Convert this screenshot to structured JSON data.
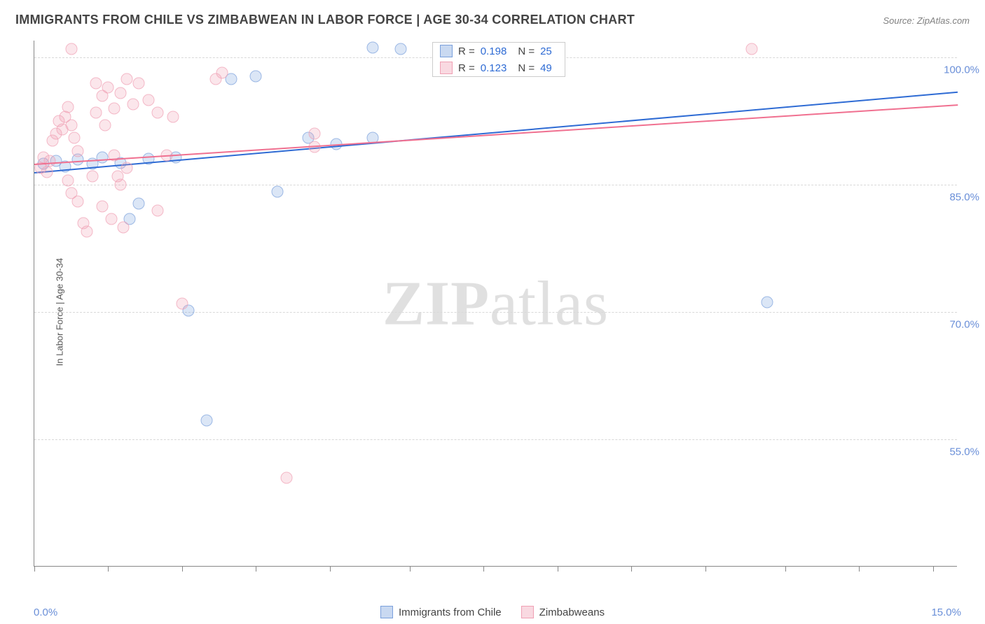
{
  "title": "IMMIGRANTS FROM CHILE VS ZIMBABWEAN IN LABOR FORCE | AGE 30-34 CORRELATION CHART",
  "source": "Source: ZipAtlas.com",
  "watermark_bold": "ZIP",
  "watermark_rest": "atlas",
  "chart": {
    "type": "scatter",
    "background_color": "#ffffff",
    "grid_color": "#d8d8d8",
    "axis_color": "#888888",
    "text_color": "#444444",
    "value_color": "#6a8fd8",
    "y_axis_title": "In Labor Force | Age 30-34",
    "xlim": [
      0,
      15
    ],
    "ylim": [
      40,
      102
    ],
    "x_ticks": [
      0,
      1.2,
      2.4,
      3.6,
      4.8,
      6.1,
      7.3,
      8.5,
      9.7,
      10.9,
      12.2,
      13.4,
      14.6
    ],
    "x_tick_labels": {
      "left": "0.0%",
      "right": "15.0%"
    },
    "y_gridlines": [
      55,
      70,
      85,
      100
    ],
    "y_tick_labels": [
      "55.0%",
      "70.0%",
      "85.0%",
      "100.0%"
    ],
    "marker_size": 17,
    "marker_opacity": 0.75,
    "line_width": 2,
    "series": [
      {
        "key": "a",
        "name": "Immigrants from Chile",
        "color_fill": "rgba(120,160,220,0.35)",
        "color_stroke": "#7aa0dc",
        "trend_color": "#2e6bd4",
        "R": "0.198",
        "N": "25",
        "trend": {
          "x1": 0,
          "y1": 86.5,
          "x2": 15,
          "y2": 96
        },
        "points": [
          [
            0.15,
            87.5
          ],
          [
            0.35,
            87.8
          ],
          [
            0.5,
            87.2
          ],
          [
            0.7,
            88.0
          ],
          [
            0.95,
            87.5
          ],
          [
            1.1,
            88.2
          ],
          [
            1.4,
            87.6
          ],
          [
            1.85,
            88.1
          ],
          [
            1.7,
            82.8
          ],
          [
            1.55,
            81.0
          ],
          [
            2.3,
            88.2
          ],
          [
            2.5,
            70.2
          ],
          [
            2.8,
            57.2
          ],
          [
            3.2,
            97.5
          ],
          [
            3.6,
            97.8
          ],
          [
            3.95,
            84.2
          ],
          [
            4.45,
            90.5
          ],
          [
            4.9,
            89.8
          ],
          [
            5.5,
            101.2
          ],
          [
            5.95,
            101.0
          ],
          [
            5.5,
            90.5
          ],
          [
            6.65,
            100.8
          ],
          [
            11.9,
            71.2
          ],
          [
            6.95,
            100.6
          ],
          [
            7.3,
            100.8
          ]
        ]
      },
      {
        "key": "b",
        "name": "Zimbabweans",
        "color_fill": "rgba(240,160,180,0.35)",
        "color_stroke": "#f0a0b4",
        "trend_color": "#f07090",
        "R": "0.123",
        "N": "49",
        "trend": {
          "x1": 0,
          "y1": 87.5,
          "x2": 15,
          "y2": 94.5
        },
        "points": [
          [
            0.1,
            87.0
          ],
          [
            0.15,
            88.2
          ],
          [
            0.2,
            86.5
          ],
          [
            0.25,
            87.8
          ],
          [
            0.3,
            90.2
          ],
          [
            0.35,
            91.0
          ],
          [
            0.4,
            92.5
          ],
          [
            0.45,
            91.5
          ],
          [
            0.5,
            93.0
          ],
          [
            0.55,
            94.2
          ],
          [
            0.6,
            92.0
          ],
          [
            0.65,
            90.5
          ],
          [
            0.7,
            89.0
          ],
          [
            0.55,
            85.5
          ],
          [
            0.6,
            84.0
          ],
          [
            0.7,
            83.0
          ],
          [
            0.8,
            80.5
          ],
          [
            0.85,
            79.5
          ],
          [
            0.95,
            86.0
          ],
          [
            0.6,
            101.0
          ],
          [
            1.0,
            97.0
          ],
          [
            1.1,
            95.5
          ],
          [
            1.2,
            96.5
          ],
          [
            1.3,
            94.0
          ],
          [
            1.4,
            95.8
          ],
          [
            1.5,
            97.5
          ],
          [
            1.6,
            94.5
          ],
          [
            1.0,
            93.5
          ],
          [
            1.15,
            92.0
          ],
          [
            1.3,
            88.5
          ],
          [
            1.35,
            86.0
          ],
          [
            1.4,
            85.0
          ],
          [
            1.5,
            87.0
          ],
          [
            1.1,
            82.5
          ],
          [
            1.25,
            81.0
          ],
          [
            1.45,
            80.0
          ],
          [
            1.85,
            95.0
          ],
          [
            2.0,
            82.0
          ],
          [
            2.0,
            93.5
          ],
          [
            2.25,
            93.0
          ],
          [
            2.4,
            71.0
          ],
          [
            2.95,
            97.5
          ],
          [
            3.05,
            98.2
          ],
          [
            4.1,
            50.5
          ],
          [
            4.55,
            89.5
          ],
          [
            4.55,
            91.0
          ],
          [
            2.15,
            88.5
          ],
          [
            11.65,
            101.0
          ],
          [
            1.7,
            97.0
          ]
        ]
      }
    ],
    "stat_box": {
      "R_label": "R =",
      "N_label": "N ="
    },
    "legend_position": "bottom_center"
  }
}
